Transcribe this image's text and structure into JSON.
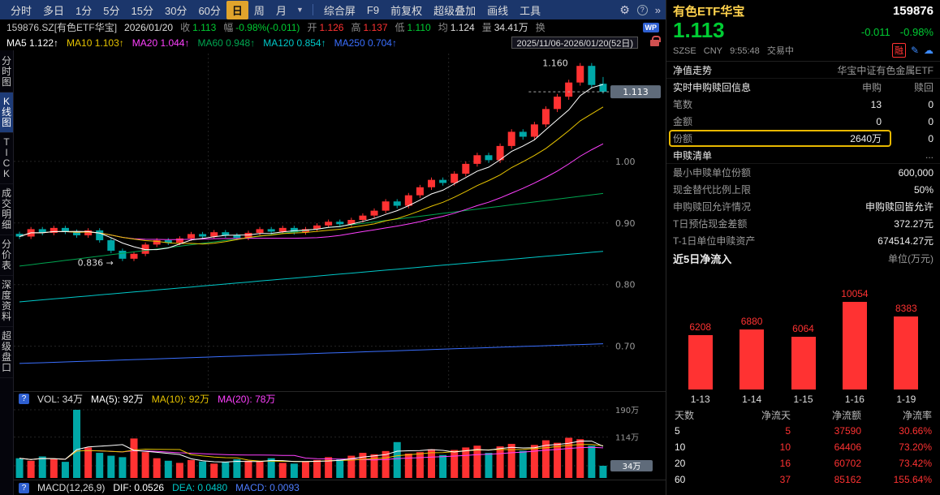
{
  "colors": {
    "up": "#ff3232",
    "down_text": "#00cc33",
    "down_candle": "#00a8a8",
    "accent_yellow": "#e8b800",
    "toolbar_bg": "#1b366b",
    "active_tab_bg": "#e0a42c",
    "price_tag_bg": "#5f6b7a"
  },
  "toolbar": {
    "tabs": [
      {
        "key": "minute",
        "label": "分时"
      },
      {
        "key": "multiday",
        "label": "多日"
      },
      {
        "key": "1min",
        "label": "1分"
      },
      {
        "key": "5min",
        "label": "5分"
      },
      {
        "key": "15min",
        "label": "15分"
      },
      {
        "key": "30min",
        "label": "30分"
      },
      {
        "key": "60min",
        "label": "60分"
      },
      {
        "key": "daily",
        "label": "日",
        "active": true
      },
      {
        "key": "weekly",
        "label": "周"
      },
      {
        "key": "monthly",
        "label": "月"
      }
    ],
    "menu": [
      {
        "key": "composite-screen",
        "label": "综合屏"
      },
      {
        "key": "f9",
        "label": "F9"
      },
      {
        "key": "forward-adjust",
        "label": "前复权"
      },
      {
        "key": "super-overlay",
        "label": "超级叠加"
      },
      {
        "key": "draw-line",
        "label": "画线"
      },
      {
        "key": "tools",
        "label": "工具"
      }
    ]
  },
  "info_bar": {
    "fields": [
      {
        "key": "symbol",
        "value": "159876.SZ[有色ETF华宝]",
        "cls": "plain"
      },
      {
        "key": "date",
        "value": "2026/01/20",
        "cls": "flat"
      },
      {
        "key": "close",
        "label": "收",
        "value": "1.113",
        "cls": "down"
      },
      {
        "key": "change",
        "label": "幅",
        "value": "-0.98%(-0.011)",
        "cls": "down"
      },
      {
        "key": "open",
        "label": "开",
        "value": "1.126",
        "cls": "up"
      },
      {
        "key": "high",
        "label": "高",
        "value": "1.137",
        "cls": "up"
      },
      {
        "key": "low",
        "label": "低",
        "value": "1.110",
        "cls": "down"
      },
      {
        "key": "avg",
        "label": "均",
        "value": "1.124",
        "cls": "flat"
      },
      {
        "key": "volume",
        "label": "量",
        "value": "34.41万",
        "cls": "flat"
      },
      {
        "key": "turnover",
        "label": "换",
        "value": "",
        "cls": "flat"
      }
    ],
    "wp_badge": "WP"
  },
  "ma_bar": {
    "items": [
      {
        "label": "MA5",
        "value": "1.122↑",
        "color": "#ffffff"
      },
      {
        "label": "MA10",
        "value": "1.103↑",
        "color": "#e6c300"
      },
      {
        "label": "MA20",
        "value": "1.044↑",
        "color": "#ff40ff"
      },
      {
        "label": "MA60",
        "value": "0.948↑",
        "color": "#00a550"
      },
      {
        "label": "MA120",
        "value": "0.854↑",
        "color": "#00c8c8"
      },
      {
        "label": "MA250",
        "value": "0.704↑",
        "color": "#3a6fff"
      }
    ],
    "range": "2025/11/06-2026/01/20(52日)"
  },
  "sidebar": {
    "items": [
      {
        "key": "minute-chart",
        "label": "分时图"
      },
      {
        "key": "kline-chart",
        "label": "K线图",
        "active": true
      },
      {
        "key": "tick",
        "label": "TICK"
      },
      {
        "key": "trade-details",
        "label": "成交明细"
      },
      {
        "key": "price-table",
        "label": "分价表"
      },
      {
        "key": "depth-info",
        "label": "深度资料"
      },
      {
        "key": "super-level2",
        "label": "超级盘口"
      }
    ]
  },
  "volume_bar": {
    "items": [
      {
        "label": "VOL:",
        "value": "34万",
        "color": "#dddddd"
      },
      {
        "label": "MA(5):",
        "value": "92万",
        "color": "#ffffff"
      },
      {
        "label": "MA(10):",
        "value": "92万",
        "color": "#e6c300"
      },
      {
        "label": "MA(20):",
        "value": "78万",
        "color": "#ff40ff"
      }
    ]
  },
  "macd_bar": {
    "title": "MACD(12,26,9)",
    "dif": "DIF: 0.0526",
    "dea": "DEA: 0.0480",
    "macd": "MACD: 0.0093"
  },
  "right_panel": {
    "header": {
      "name": "有色ETF华宝",
      "code": "159876",
      "price": "1.113",
      "change": "-0.011",
      "change_pct": "-0.98%",
      "exchange": "SZSE",
      "currency": "CNY",
      "time": "9:55:48",
      "status": "交易中",
      "margin_badge": "融"
    },
    "nav": {
      "label": "净值走势",
      "value": "华宝中证有色金属ETF"
    },
    "purchase": {
      "title": "实时申购赎回信息",
      "col_buy": "申购",
      "col_sell": "赎回",
      "rows": [
        {
          "label": "笔数",
          "buy": "13",
          "sell": "0"
        },
        {
          "label": "金额",
          "buy": "0",
          "sell": "0"
        },
        {
          "label": "份额",
          "buy": "2640万",
          "sell": "0",
          "highlight": true
        }
      ]
    },
    "list_title": "申赎清单",
    "list_more": "...",
    "detail_rows": [
      {
        "key": "min-unit",
        "label": "最小申赎单位份额",
        "value": "600,000"
      },
      {
        "key": "cash-sub-ratio",
        "label": "现金替代比例上限",
        "value": "50%"
      },
      {
        "key": "permission",
        "label": "申购赎回允许情况",
        "value": "申购赎回皆允许"
      },
      {
        "key": "t-cash-diff",
        "label": "T日预估现金差额",
        "value": "372.27元"
      },
      {
        "key": "t1-unit-asset",
        "label": "T-1日单位申赎资产",
        "value": "674514.27元"
      }
    ],
    "flow_table": {
      "headers": [
        "天数",
        "净流天",
        "净流额",
        "净流率"
      ],
      "rows": [
        [
          "5",
          "5",
          "37590",
          "30.66%"
        ],
        [
          "10",
          "10",
          "64406",
          "73.20%"
        ],
        [
          "20",
          "16",
          "60702",
          "73.42%"
        ],
        [
          "60",
          "37",
          "85162",
          "155.64%"
        ]
      ]
    }
  },
  "chart_data": [
    {
      "type": "candlestick",
      "symbol": "159876.SZ",
      "period": "daily",
      "visible_range": "2025/11/06-2026/01/20(52日)",
      "y_axis_ticks": [
        1.0,
        0.9,
        0.8,
        0.7
      ],
      "price_min": 0.635,
      "price_max": 1.175,
      "closes": [
        0.878,
        0.89,
        0.884,
        0.892,
        0.886,
        0.88,
        0.888,
        0.872,
        0.855,
        0.842,
        0.85,
        0.865,
        0.872,
        0.868,
        0.875,
        0.882,
        0.878,
        0.885,
        0.88,
        0.876,
        0.884,
        0.89,
        0.886,
        0.892,
        0.885,
        0.89,
        0.896,
        0.902,
        0.898,
        0.905,
        0.912,
        0.92,
        0.935,
        0.928,
        0.945,
        0.958,
        0.97,
        0.965,
        0.98,
        0.996,
        1.01,
        1.002,
        1.025,
        1.048,
        1.04,
        1.06,
        1.085,
        1.105,
        1.128,
        1.155,
        1.124,
        1.113
      ],
      "last_ohlc": {
        "open": 1.126,
        "high": 1.137,
        "low": 1.11,
        "close": 1.113
      },
      "annotations": {
        "high": "1.160",
        "low": "0.836",
        "last": "1.113"
      },
      "ma_current": {
        "MA5": 1.122,
        "MA10": 1.103,
        "MA20": 1.044,
        "MA60": 0.948,
        "MA120": 0.854,
        "MA250": 0.704
      },
      "ma_trend": {
        "ma60": [
          0.83,
          0.948
        ],
        "ma120": [
          0.772,
          0.854
        ],
        "ma250": [
          0.672,
          0.704
        ]
      },
      "volumes": [
        55,
        48,
        60,
        52,
        45,
        190,
        85,
        70,
        62,
        58,
        110,
        72,
        55,
        48,
        42,
        50,
        46,
        40,
        44,
        52,
        48,
        45,
        55,
        42,
        40,
        46,
        50,
        58,
        52,
        62,
        70,
        66,
        75,
        100,
        68,
        72,
        80,
        64,
        78,
        85,
        90,
        70,
        88,
        95,
        76,
        92,
        105,
        98,
        112,
        108,
        90,
        34
      ],
      "volume_ticks": [
        {
          "label": "190万",
          "value": 190
        },
        {
          "label": "114万",
          "value": 114
        },
        {
          "label": "34万",
          "value": 34,
          "tag": true
        }
      ]
    },
    {
      "type": "bar",
      "title": "近5日净流入",
      "unit": "单位(万元)",
      "categories": [
        "1-13",
        "1-14",
        "1-15",
        "1-16",
        "1-19"
      ],
      "values": [
        6208,
        6880,
        6064,
        10054,
        8383
      ],
      "bar_color": "#ff3232",
      "legend_position": "none",
      "grid": false
    }
  ]
}
